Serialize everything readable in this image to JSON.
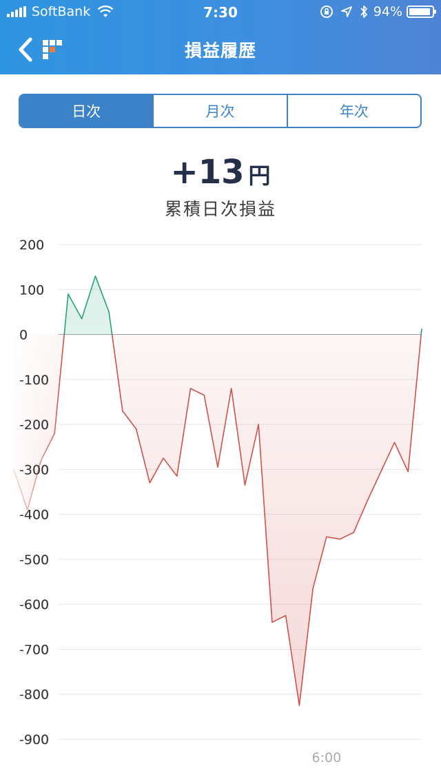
{
  "status_bar": {
    "carrier": "SoftBank",
    "time": "7:30",
    "battery_percent": "94%",
    "battery_level": 0.94
  },
  "nav": {
    "title": "損益履歴",
    "back_icon": "chevron-left-icon",
    "logo_icon": "app-logo-icon"
  },
  "tabs": [
    {
      "label": "日次",
      "active": true
    },
    {
      "label": "月次",
      "active": false
    },
    {
      "label": "年次",
      "active": false
    }
  ],
  "summary": {
    "value": "+13",
    "unit": "円",
    "label": "累積日次損益"
  },
  "colors": {
    "header_start": "#2f95e0",
    "header_end": "#4f84d4",
    "accent": "#3c82c8",
    "positive": "#26a17b",
    "negative": "#d0504a"
  },
  "chart_data": {
    "type": "area",
    "y_ticks": [
      200,
      100,
      0,
      -100,
      -200,
      -300,
      -400,
      -500,
      -600,
      -700,
      -800,
      -900
    ],
    "ylim": [
      -900,
      200
    ],
    "x_tick_labels": [
      {
        "label": "6:00",
        "index": 23
      }
    ],
    "grid": true,
    "baseline": 0,
    "values": [
      -300,
      -390,
      -280,
      -220,
      90,
      35,
      130,
      50,
      -170,
      -210,
      -330,
      -275,
      -315,
      -120,
      -135,
      -295,
      -120,
      -335,
      -200,
      -640,
      -625,
      -825,
      -565,
      -450,
      -455,
      -440,
      -370,
      -305,
      -240,
      -305,
      13
    ]
  }
}
